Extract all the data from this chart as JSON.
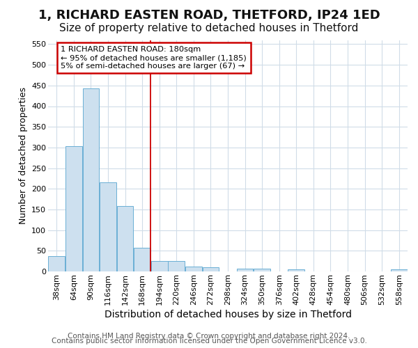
{
  "title1": "1, RICHARD EASTEN ROAD, THETFORD, IP24 1ED",
  "title2": "Size of property relative to detached houses in Thetford",
  "xlabel": "Distribution of detached houses by size in Thetford",
  "ylabel": "Number of detached properties",
  "categories": [
    "38sqm",
    "64sqm",
    "90sqm",
    "116sqm",
    "142sqm",
    "168sqm",
    "194sqm",
    "220sqm",
    "246sqm",
    "272sqm",
    "298sqm",
    "324sqm",
    "350sqm",
    "376sqm",
    "402sqm",
    "428sqm",
    "454sqm",
    "480sqm",
    "506sqm",
    "532sqm",
    "558sqm"
  ],
  "values": [
    37,
    303,
    443,
    216,
    158,
    57,
    26,
    25,
    11,
    10,
    0,
    6,
    7,
    0,
    5,
    0,
    0,
    0,
    0,
    0,
    5
  ],
  "bar_color": "#cde0ef",
  "bar_edge_color": "#6aafd4",
  "vline_x": 5.5,
  "annotation_text": "1 RICHARD EASTEN ROAD: 180sqm\n← 95% of detached houses are smaller (1,185)\n5% of semi-detached houses are larger (67) →",
  "annotation_box_color": "#ffffff",
  "annotation_box_edge_color": "#cc0000",
  "ylim": [
    0,
    560
  ],
  "yticks": [
    0,
    50,
    100,
    150,
    200,
    250,
    300,
    350,
    400,
    450,
    500,
    550
  ],
  "footer1": "Contains HM Land Registry data © Crown copyright and database right 2024.",
  "footer2": "Contains public sector information licensed under the Open Government Licence v3.0.",
  "background_color": "#ffffff",
  "plot_bg_color": "#ffffff",
  "grid_color": "#d0dce8",
  "title1_fontsize": 13,
  "title2_fontsize": 11,
  "xlabel_fontsize": 10,
  "ylabel_fontsize": 9,
  "tick_fontsize": 8,
  "footer_fontsize": 7.5
}
